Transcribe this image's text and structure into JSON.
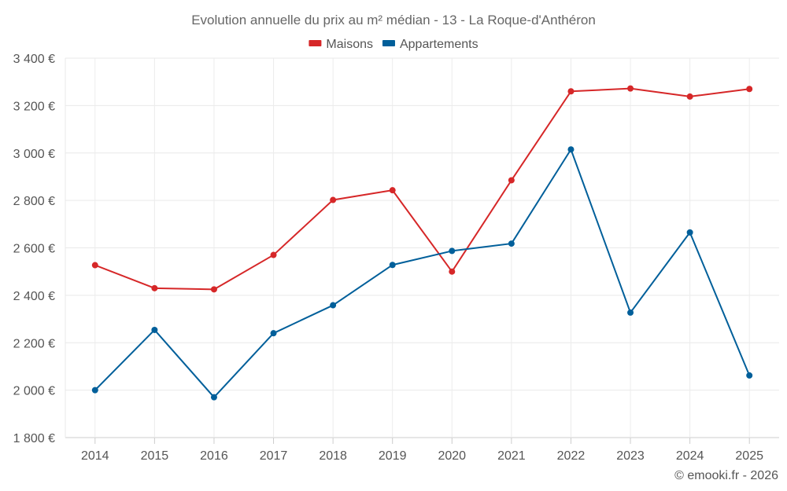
{
  "chart_data": {
    "type": "line",
    "title": "Evolution annuelle du prix au m² médian - 13 - La Roque-d'Anthéron",
    "categories": [
      "2014",
      "2015",
      "2016",
      "2017",
      "2018",
      "2019",
      "2020",
      "2021",
      "2022",
      "2023",
      "2024",
      "2025"
    ],
    "series": [
      {
        "name": "Maisons",
        "color": "#d62728",
        "values": [
          2527,
          2430,
          2425,
          2570,
          2802,
          2843,
          2500,
          2885,
          3260,
          3272,
          3238,
          3270
        ]
      },
      {
        "name": "Appartements",
        "color": "#005f9a",
        "values": [
          2000,
          2254,
          1970,
          2240,
          2358,
          2528,
          2587,
          2618,
          3015,
          2327,
          2665,
          2062
        ]
      }
    ],
    "ylim": [
      1800,
      3400
    ],
    "yticks": [
      1800,
      2000,
      2200,
      2400,
      2600,
      2800,
      3000,
      3200,
      3400
    ],
    "ytick_labels": [
      "1 800 €",
      "2 000 €",
      "2 200 €",
      "2 400 €",
      "2 600 €",
      "2 800 €",
      "3 000 €",
      "3 200 €",
      "3 400 €"
    ],
    "xlabel": "",
    "ylabel": "",
    "grid": true,
    "legend_position": "top-center"
  },
  "credit": "© emooki.fr - 2026"
}
